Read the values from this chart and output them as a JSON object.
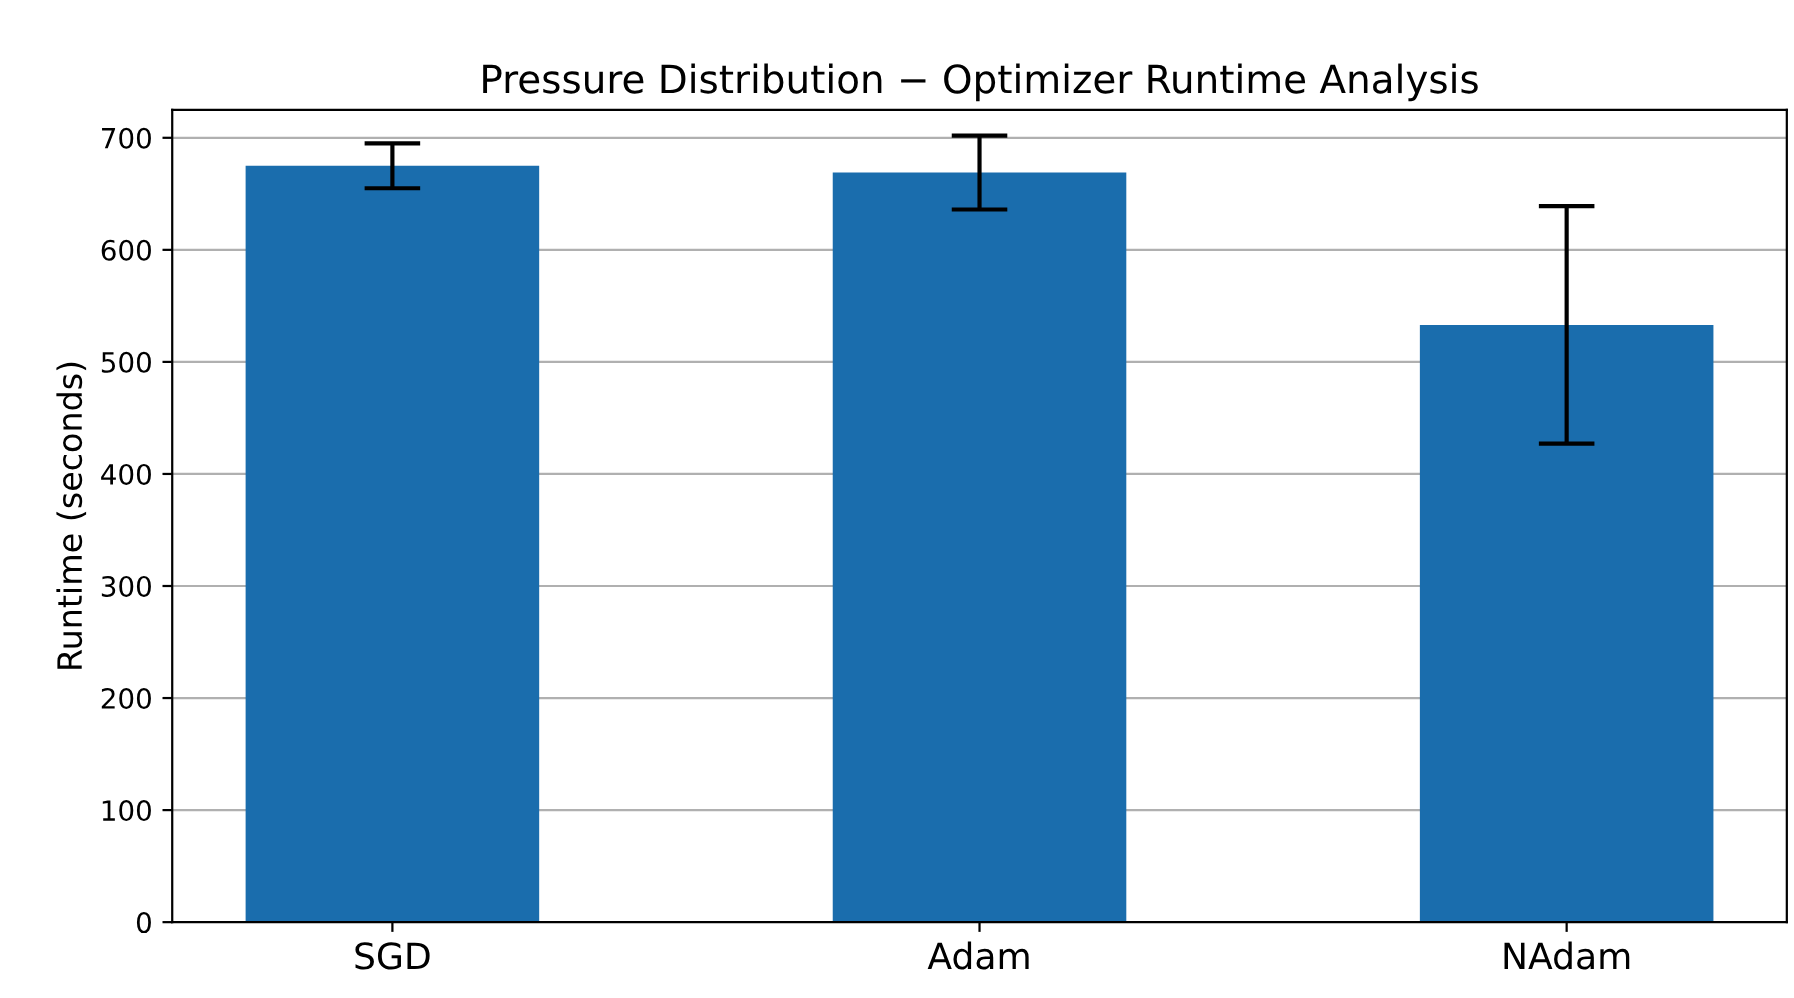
{
  "chart_data": {
    "type": "bar",
    "title": "Pressure Distribution − Optimizer Runtime Analysis",
    "ylabel": "Runtime (seconds)",
    "categories": [
      "SGD",
      "Adam",
      "NAdam"
    ],
    "values": [
      675,
      669,
      533
    ],
    "errors": [
      20,
      33,
      106
    ],
    "color": "#1a6dad",
    "ylim": [
      0,
      725
    ],
    "yticks": [
      0,
      100,
      200,
      300,
      400,
      500,
      600,
      700
    ],
    "grid": "y"
  }
}
